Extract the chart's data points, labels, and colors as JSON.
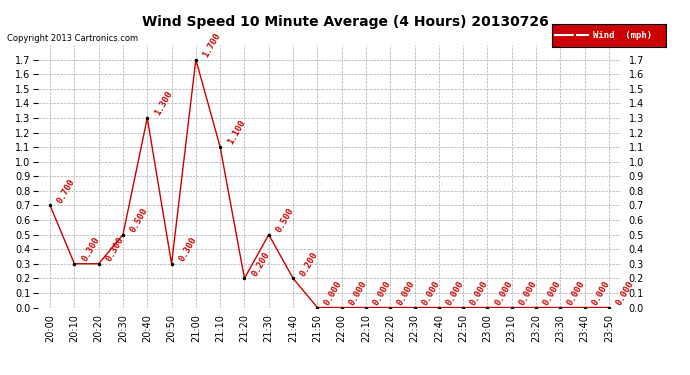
{
  "title": "Wind Speed 10 Minute Average (4 Hours) 20130726",
  "copyright": "Copyright 2013 Cartronics.com",
  "legend_label": "Wind  (mph)",
  "x_labels": [
    "20:00",
    "20:10",
    "20:20",
    "20:30",
    "20:40",
    "20:50",
    "21:00",
    "21:10",
    "21:20",
    "21:30",
    "21:40",
    "21:50",
    "22:00",
    "22:10",
    "22:20",
    "22:30",
    "22:40",
    "22:50",
    "23:00",
    "23:10",
    "23:20",
    "23:30",
    "23:40",
    "23:50"
  ],
  "y_values": [
    0.7,
    0.3,
    0.3,
    0.5,
    1.3,
    0.3,
    1.7,
    1.1,
    0.2,
    0.5,
    0.2,
    0.0,
    0.0,
    0.0,
    0.0,
    0.0,
    0.0,
    0.0,
    0.0,
    0.0,
    0.0,
    0.0,
    0.0,
    0.0
  ],
  "line_color": "#cc0000",
  "marker_color": "#000000",
  "label_color": "#cc0000",
  "title_color": "#000000",
  "background_color": "#ffffff",
  "grid_color": "#aaaaaa",
  "ylim": [
    0.0,
    1.8
  ],
  "yticks": [
    0.0,
    0.1,
    0.2,
    0.3,
    0.4,
    0.5,
    0.6,
    0.7,
    0.8,
    0.9,
    1.0,
    1.1,
    1.2,
    1.3,
    1.4,
    1.5,
    1.6,
    1.7
  ],
  "title_fontsize": 10,
  "label_fontsize": 6.5,
  "tick_fontsize": 7,
  "legend_bg": "#cc0000",
  "legend_text_color": "#ffffff",
  "annotation_rotation": 60
}
